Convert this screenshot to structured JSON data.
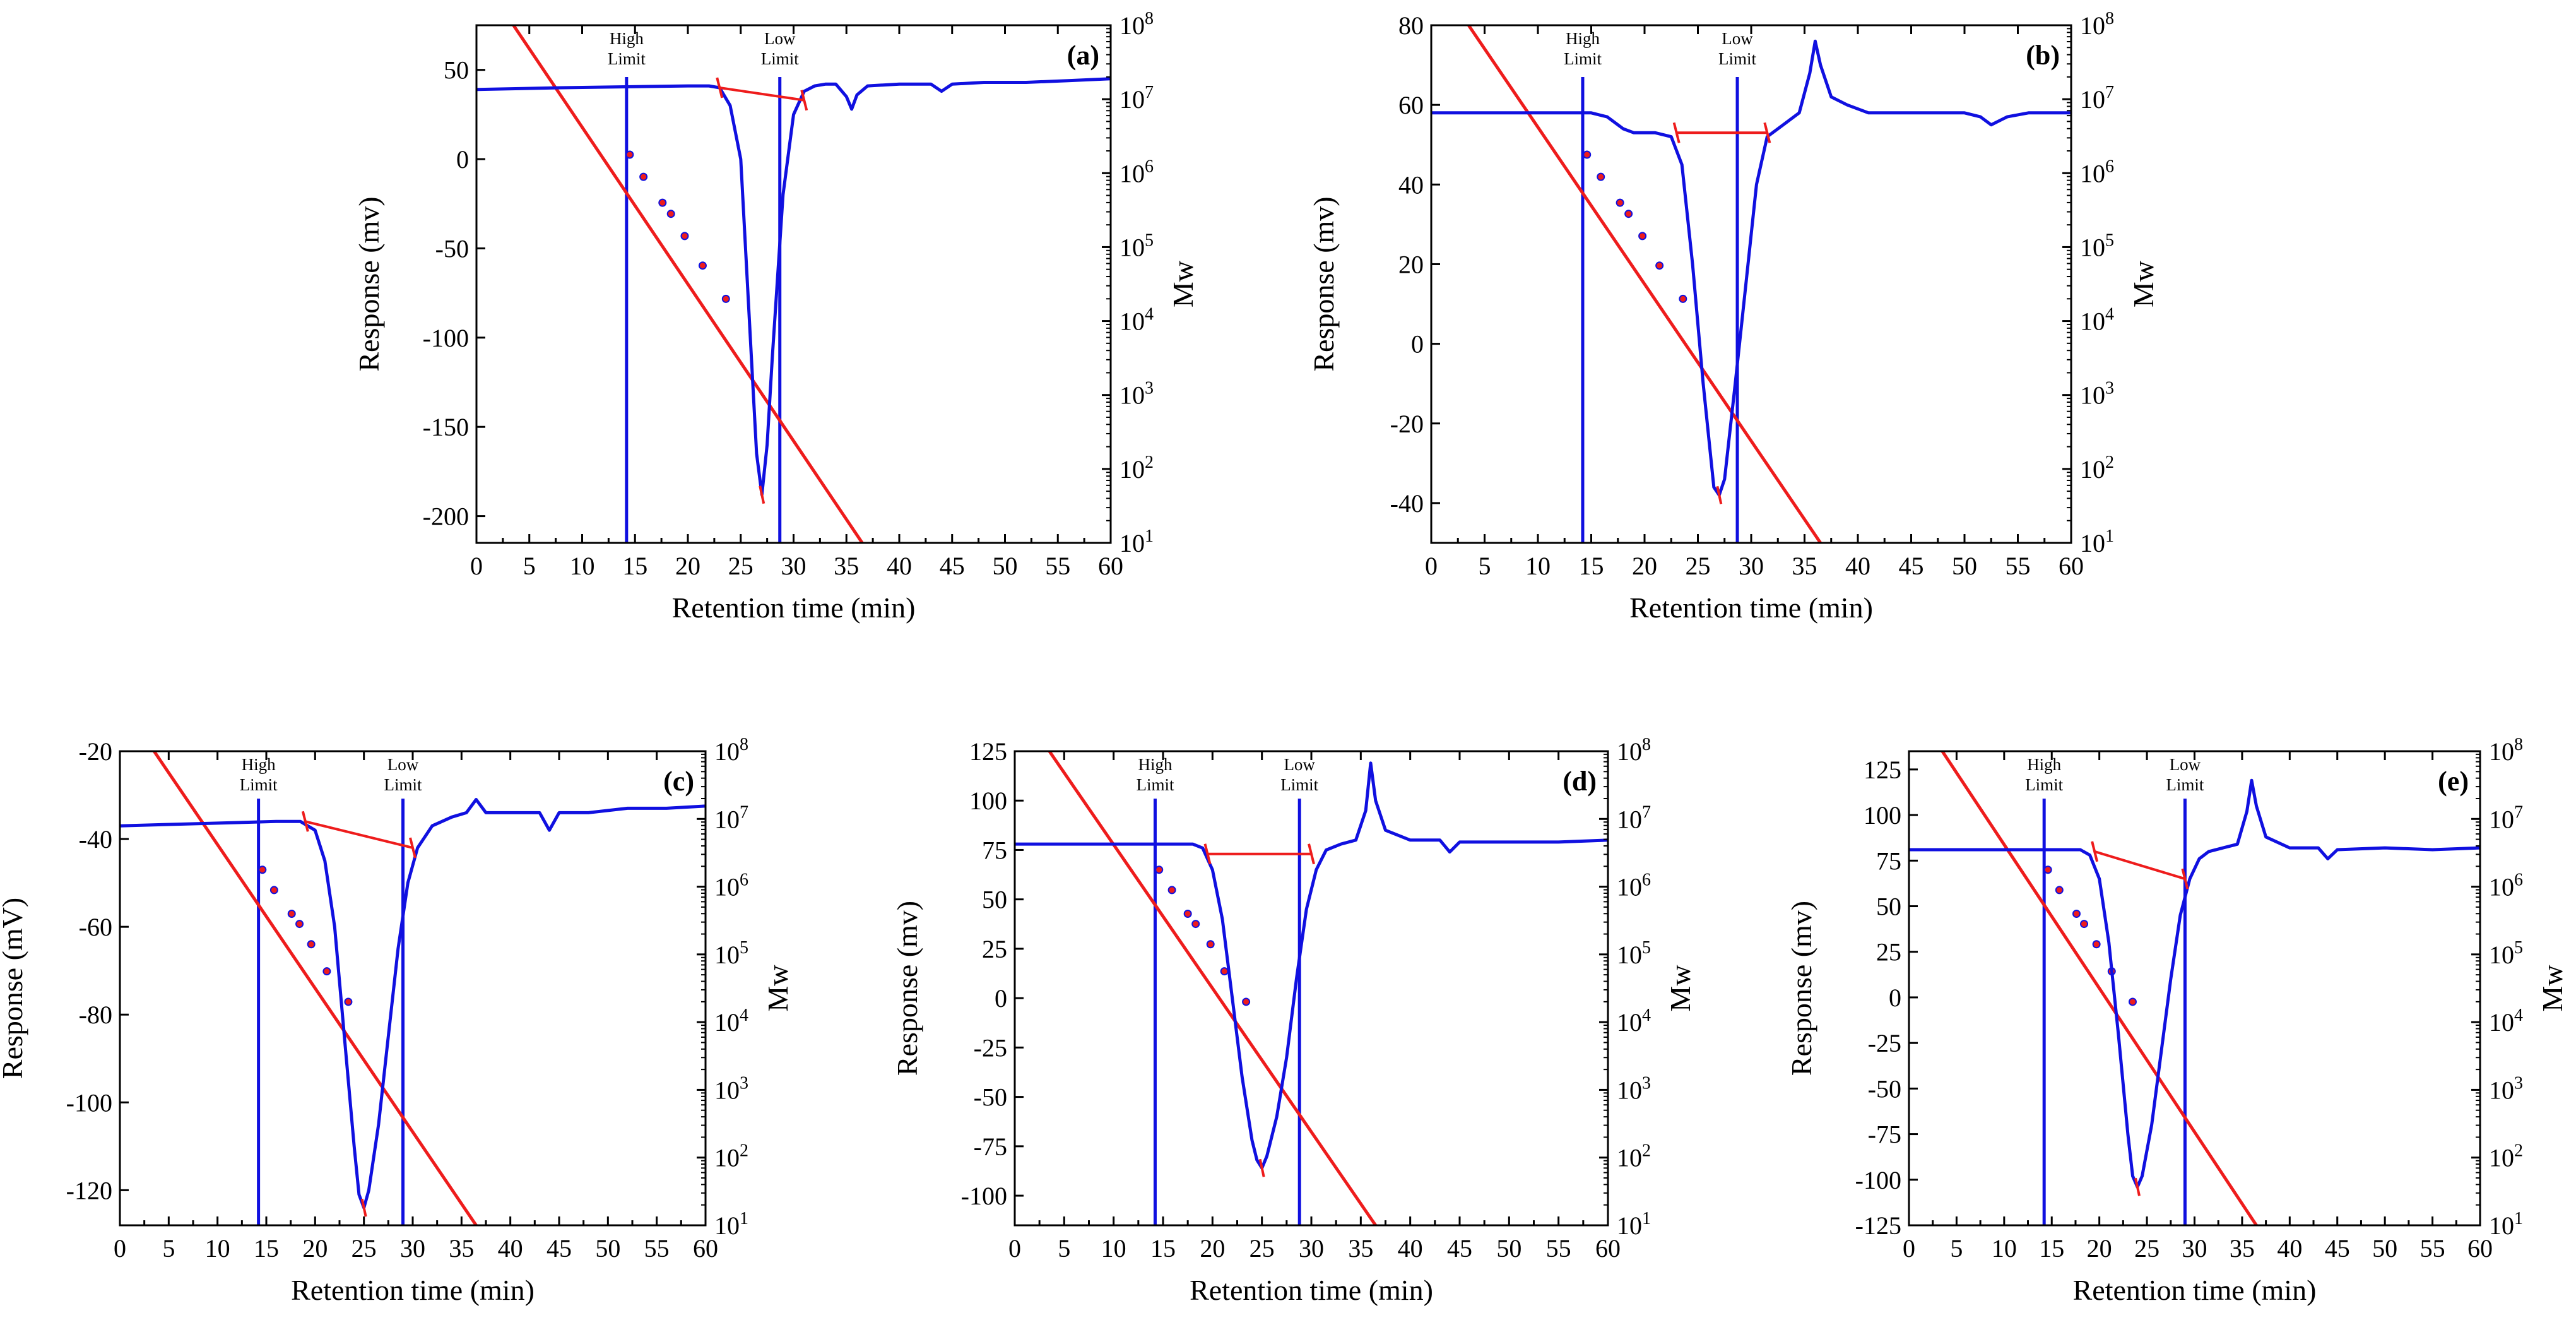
{
  "figure": {
    "colors": {
      "response": "#1010e0",
      "calibration": "#ee1c1c",
      "axes": "#000000",
      "limits": "#1010e0"
    },
    "common": {
      "xlabel": "Retention time (min)",
      "y2label": "Mw",
      "xticks": [
        "0",
        "5",
        "10",
        "15",
        "20",
        "25",
        "30",
        "35",
        "40",
        "45",
        "50",
        "55",
        "60"
      ],
      "y2_exponents": [
        "1",
        "2",
        "3",
        "4",
        "5",
        "6",
        "7",
        "8"
      ],
      "high_limit": [
        "High",
        "Limit"
      ],
      "low_limit": [
        "Low",
        "Limit"
      ]
    }
  },
  "chart_data": [
    {
      "type": "line",
      "panel": "(a)",
      "ylabel": "Response (mv)",
      "xlim": [
        0,
        60
      ],
      "ylim": [
        -215,
        75
      ],
      "y2lim_log10": [
        1,
        8
      ],
      "yticks": [
        "-200",
        "-150",
        "-100",
        "-50",
        "0",
        "50"
      ],
      "ytick_values": [
        -200,
        -150,
        -100,
        -50,
        0,
        50
      ],
      "high_limit_x": 14.2,
      "low_limit_x": 28.7,
      "response": {
        "name": "Response",
        "x": [
          0,
          8,
          20,
          22,
          23,
          24,
          25,
          26,
          26.5,
          27,
          27.5,
          28,
          29,
          30,
          31,
          32,
          33,
          34,
          35,
          35.5,
          36,
          37,
          40,
          43,
          44,
          45,
          48,
          52,
          56,
          60
        ],
        "y": [
          39,
          40,
          41,
          41,
          40,
          30,
          0,
          -110,
          -165,
          -188,
          -160,
          -110,
          -20,
          25,
          38,
          41,
          42,
          42,
          35,
          28,
          36,
          41,
          42,
          42,
          38,
          42,
          43,
          43,
          44,
          45
        ]
      },
      "baseline": {
        "x": [
          23,
          31
        ],
        "y": [
          40,
          33
        ]
      },
      "calibration": {
        "x": [
          3.5,
          36.5
        ],
        "log10_mw": [
          8,
          1
        ]
      },
      "standards": {
        "x": [
          14.5,
          15.8,
          17.6,
          18.4,
          19.7,
          21.4,
          23.6
        ],
        "log10_mw": [
          6.25,
          5.95,
          5.6,
          5.45,
          5.15,
          4.75,
          4.3
        ]
      }
    },
    {
      "type": "line",
      "panel": "(b)",
      "ylabel": "Response (mv)",
      "xlim": [
        0,
        60
      ],
      "ylim": [
        -50,
        80
      ],
      "y2lim_log10": [
        1,
        8
      ],
      "yticks": [
        "-40",
        "-20",
        "0",
        "20",
        "40",
        "60",
        "80"
      ],
      "ytick_values": [
        -40,
        -20,
        0,
        20,
        40,
        60,
        80
      ],
      "high_limit_x": 14.2,
      "low_limit_x": 28.7,
      "response": {
        "name": "Response",
        "x": [
          0,
          10,
          15,
          16.5,
          18,
          19,
          21,
          22.5,
          23.5,
          24.5,
          25.5,
          26.5,
          27,
          27.5,
          28.5,
          29.5,
          30.5,
          31.5,
          33,
          34.5,
          35.5,
          36,
          36.5,
          37.5,
          39,
          41,
          43,
          45,
          50,
          51.5,
          52.5,
          54,
          56,
          60
        ],
        "y": [
          58,
          58,
          58,
          57,
          54,
          53,
          53,
          52,
          45,
          20,
          -10,
          -36,
          -38,
          -34,
          -10,
          15,
          40,
          52,
          55,
          58,
          68,
          76,
          70,
          62,
          60,
          58,
          58,
          58,
          58,
          57,
          55,
          57,
          58,
          58
        ]
      },
      "baseline": {
        "x": [
          23,
          31.5
        ],
        "y": [
          53,
          53
        ]
      },
      "calibration": {
        "x": [
          3.5,
          36.5
        ],
        "log10_mw": [
          8,
          1
        ]
      },
      "standards": {
        "x": [
          14.6,
          15.9,
          17.7,
          18.5,
          19.8,
          21.4,
          23.6
        ],
        "log10_mw": [
          6.25,
          5.95,
          5.6,
          5.45,
          5.15,
          4.75,
          4.3
        ]
      }
    },
    {
      "type": "line",
      "panel": "(c)",
      "ylabel": "Response (mV)",
      "xlim": [
        0,
        60
      ],
      "ylim": [
        -128,
        -20
      ],
      "y2lim_log10": [
        1,
        8
      ],
      "yticks": [
        "-120",
        "-100",
        "-80",
        "-60",
        "-40",
        "-20"
      ],
      "ytick_values": [
        -120,
        -100,
        -80,
        -60,
        -40,
        -20
      ],
      "high_limit_x": 14.2,
      "low_limit_x": 29.0,
      "response": {
        "name": "Response",
        "x": [
          0,
          8,
          16,
          18.5,
          20,
          21,
          22,
          23,
          24,
          24.5,
          25,
          25.5,
          26.5,
          27.5,
          28.5,
          29.5,
          30.5,
          32,
          34,
          35.5,
          36.5,
          37.5,
          40,
          43,
          44,
          45,
          48,
          52,
          56,
          60
        ],
        "y": [
          -37,
          -36.5,
          -36,
          -36,
          -38,
          -45,
          -60,
          -85,
          -110,
          -121,
          -124,
          -120,
          -105,
          -85,
          -65,
          -50,
          -42,
          -37,
          -35,
          -34,
          -31,
          -34,
          -34,
          -34,
          -38,
          -34,
          -34,
          -33,
          -33,
          -32.5
        ]
      },
      "baseline": {
        "x": [
          19,
          30
        ],
        "y": [
          -36,
          -42
        ]
      },
      "calibration": {
        "x": [
          3.5,
          36.5
        ],
        "log10_mw": [
          8,
          1
        ]
      },
      "standards": {
        "x": [
          14.6,
          15.8,
          17.6,
          18.4,
          19.6,
          21.2,
          23.4
        ],
        "log10_mw": [
          6.25,
          5.95,
          5.6,
          5.45,
          5.15,
          4.75,
          4.3
        ]
      }
    },
    {
      "type": "line",
      "panel": "(d)",
      "ylabel": "Response (mv)",
      "xlim": [
        0,
        60
      ],
      "ylim": [
        -115,
        125
      ],
      "y2lim_log10": [
        1,
        8
      ],
      "yticks": [
        "-100",
        "-75",
        "-50",
        "-25",
        "0",
        "25",
        "50",
        "75",
        "100",
        "125"
      ],
      "ytick_values": [
        -100,
        -75,
        -50,
        -25,
        0,
        25,
        50,
        75,
        100,
        125
      ],
      "high_limit_x": 14.2,
      "low_limit_x": 28.8,
      "response": {
        "name": "Response",
        "x": [
          0,
          10,
          16,
          18,
          19,
          20,
          21,
          22,
          23,
          24,
          24.5,
          25,
          25.5,
          26.5,
          27.5,
          28.5,
          29.5,
          30.5,
          31.5,
          33,
          34.5,
          35.5,
          36,
          36.5,
          37.5,
          40,
          43,
          44,
          45,
          50,
          55,
          60
        ],
        "y": [
          78,
          78,
          78,
          78,
          76,
          65,
          40,
          0,
          -40,
          -72,
          -82,
          -86,
          -80,
          -60,
          -30,
          10,
          45,
          65,
          75,
          78,
          80,
          95,
          119,
          100,
          85,
          80,
          80,
          74,
          79,
          79,
          79,
          80
        ]
      },
      "baseline": {
        "x": [
          19.5,
          30
        ],
        "y": [
          73,
          73
        ]
      },
      "calibration": {
        "x": [
          3.5,
          36.5
        ],
        "log10_mw": [
          8,
          1
        ]
      },
      "standards": {
        "x": [
          14.6,
          15.9,
          17.5,
          18.3,
          19.8,
          21.2,
          23.4
        ],
        "log10_mw": [
          6.25,
          5.95,
          5.6,
          5.45,
          5.15,
          4.75,
          4.3
        ]
      }
    },
    {
      "type": "line",
      "panel": "(e)",
      "ylabel": "Response (mv)",
      "xlim": [
        0,
        60
      ],
      "ylim": [
        -125,
        135
      ],
      "y2lim_log10": [
        1,
        8
      ],
      "yticks": [
        "-125",
        "-100",
        "-75",
        "-50",
        "-25",
        "0",
        "25",
        "50",
        "75",
        "100",
        "125"
      ],
      "ytick_values": [
        -125,
        -100,
        -75,
        -50,
        -25,
        0,
        25,
        50,
        75,
        100,
        125
      ],
      "high_limit_x": 14.2,
      "low_limit_x": 29.0,
      "response": {
        "name": "Response",
        "x": [
          0,
          10,
          16,
          18,
          19,
          20,
          21,
          22,
          23,
          23.5,
          24,
          24.5,
          25.5,
          26.5,
          27.5,
          28.5,
          29.5,
          30.5,
          31.5,
          33,
          34.5,
          35.5,
          36,
          36.5,
          37.5,
          40,
          43,
          44,
          45,
          50,
          55,
          60
        ],
        "y": [
          81,
          81,
          81,
          81,
          78,
          65,
          30,
          -20,
          -75,
          -98,
          -104,
          -98,
          -70,
          -30,
          10,
          45,
          65,
          76,
          80,
          82,
          84,
          102,
          119,
          105,
          88,
          82,
          82,
          76,
          81,
          82,
          81,
          82
        ]
      },
      "baseline": {
        "x": [
          19.5,
          29
        ],
        "y": [
          80,
          65
        ]
      },
      "calibration": {
        "x": [
          3.5,
          36.5
        ],
        "log10_mw": [
          8,
          1
        ]
      },
      "standards": {
        "x": [
          14.6,
          15.8,
          17.6,
          18.4,
          19.7,
          21.3,
          23.5
        ],
        "log10_mw": [
          6.25,
          5.95,
          5.6,
          5.45,
          5.15,
          4.75,
          4.3
        ]
      }
    }
  ]
}
